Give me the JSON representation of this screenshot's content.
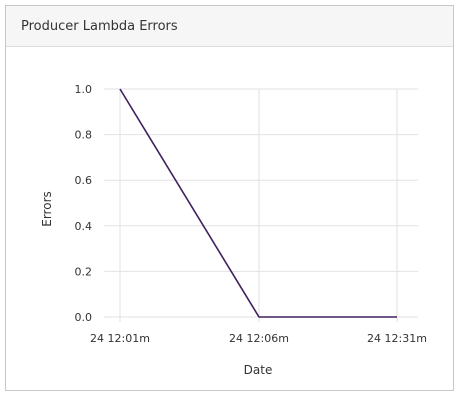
{
  "panel": {
    "title": "Producer Lambda Errors"
  },
  "chart_data": {
    "type": "line",
    "xlabel": "Date",
    "ylabel": "Errors",
    "ylim": [
      0,
      1
    ],
    "y_ticks": [
      "0.0",
      "0.2",
      "0.4",
      "0.6",
      "0.8",
      "1.0"
    ],
    "y_tick_values": [
      0,
      0.2,
      0.4,
      0.6,
      0.8,
      1.0
    ],
    "categories": [
      "24 12:01m",
      "24 12:06m",
      "24 12:31m"
    ],
    "series": [
      {
        "values": [
          1,
          0,
          0
        ],
        "color": "#3f2160"
      }
    ],
    "grid": true,
    "gridline_color": "#e2e2e2"
  }
}
